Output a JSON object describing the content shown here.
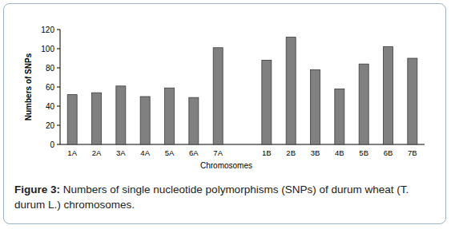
{
  "chart_data": {
    "type": "bar",
    "title": "Figure 3: Numbers of single nucleotide polymorphisms (SNPs) of durum wheat (T. durum L.) chromosomes.",
    "x_label": "Chromosomes",
    "y_label": "Numbers of SNPs",
    "categories": [
      "1A",
      "2A",
      "3A",
      "4A",
      "5A",
      "6A",
      "7A",
      null,
      "1B",
      "2B",
      "3B",
      "4B",
      "5B",
      "6B",
      "7B"
    ],
    "values": [
      52,
      54,
      61,
      50,
      59,
      49,
      101,
      null,
      88,
      112,
      78,
      58,
      84,
      102,
      90
    ],
    "color": "#808080",
    "ylim": [
      0,
      120
    ],
    "yticks": [
      0,
      20,
      40,
      60,
      80,
      100,
      120
    ],
    "grid": false
  }
}
